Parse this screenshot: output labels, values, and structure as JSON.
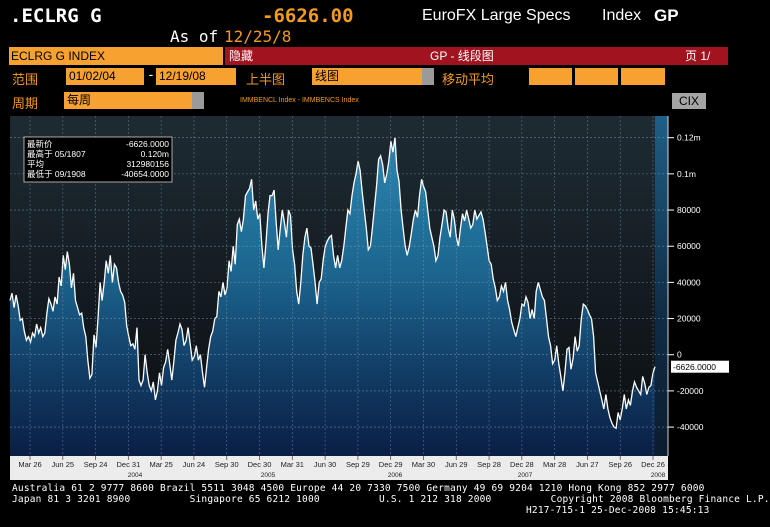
{
  "header": {
    "ticker": ".ECLRG G",
    "value": "-6626.00",
    "description": "EuroFX Large Specs",
    "index_label": "Index",
    "gp": "GP",
    "as_of_label": "As of",
    "as_of_date": "12/25/8"
  },
  "titlebar": {
    "security": "ECLRG G INDEX",
    "hide": "隐藏",
    "function": "GP - 线段图",
    "page": "页 1/"
  },
  "controls": {
    "range_label": "范围",
    "start_date": "01/02/04",
    "end_date": "12/19/08",
    "upper_chart_label": "上半图",
    "upper_chart_value": "线图",
    "moving_avg_label": "移动平均",
    "period_label": "周期",
    "period_value": "每周",
    "cix_button": "CIX"
  },
  "colors": {
    "accent": "#f29b1f",
    "title_bar": "#a1131f",
    "field": "#f7a131",
    "line": "#ffffff"
  },
  "chart_data": {
    "type": "area",
    "subtitle": "IMMBENCL Index - IMMBENCS Index",
    "stats_box": {
      "last_label": "最新价",
      "last_value": "-6626.0000",
      "high_label": "最高于 05/1807",
      "high_value": "0.120m",
      "avg_label": "平均",
      "avg_value": "312980156",
      "low_label": "最低于 09/1908",
      "low_value": "-40654.0000"
    },
    "last_value_tag": "-6626.0000",
    "ylim": [
      -56000,
      132000
    ],
    "y_ticks": [
      {
        "v": 120000,
        "label": "0.12m"
      },
      {
        "v": 100000,
        "label": "0.1m"
      },
      {
        "v": 80000,
        "label": "80000"
      },
      {
        "v": 60000,
        "label": "60000"
      },
      {
        "v": 40000,
        "label": "40000"
      },
      {
        "v": 20000,
        "label": "20000"
      },
      {
        "v": 0,
        "label": "0"
      },
      {
        "v": -20000,
        "label": "-20000"
      },
      {
        "v": -40000,
        "label": "-40000"
      }
    ],
    "x_ticks": [
      "Mar 26",
      "Jun 25",
      "Sep 24",
      "Dec 31",
      "Mar 25",
      "Jun 24",
      "Sep 30",
      "Dec 30",
      "Mar 31",
      "Jun 30",
      "Sep 29",
      "Dec 29",
      "Mar 30",
      "Jun 29",
      "Sep 28",
      "Dec 28",
      "Mar 28",
      "Jun 27",
      "Sep 26",
      "Dec 26"
    ],
    "year_labels": [
      "2004",
      "2005",
      "2006",
      "2007",
      "2008"
    ],
    "x_start": "2004-01-02",
    "x_end": "2008-12-19",
    "series": [
      {
        "values": [
          30000,
          34000,
          26000,
          33000,
          27000,
          19000,
          20000,
          13000,
          8000,
          10000,
          7000,
          12000,
          10000,
          17000,
          12000,
          15000,
          10000,
          12000,
          23000,
          31000,
          28000,
          24000,
          32000,
          28000,
          43000,
          38000,
          55000,
          47000,
          57000,
          50000,
          37000,
          45000,
          30000,
          26000,
          22000,
          23000,
          15000,
          10000,
          -3000,
          -13000,
          -11000,
          11000,
          4000,
          20000,
          40000,
          30000,
          40000,
          52000,
          45000,
          55000,
          40000,
          50000,
          48000,
          40000,
          35000,
          33000,
          29000,
          16000,
          10000,
          5000,
          6000,
          3000,
          15000,
          -14000,
          -17000,
          -14000,
          0,
          -10000,
          -17000,
          -20000,
          -15000,
          -25000,
          -20000,
          -10000,
          -17000,
          -7000,
          -4000,
          3000,
          -5000,
          -14000,
          -4000,
          8000,
          12000,
          17000,
          14000,
          5000,
          8000,
          15000,
          6000,
          -3000,
          -1000,
          5000,
          -3000,
          0,
          -10000,
          -18000,
          -7000,
          3000,
          10000,
          13000,
          20000,
          21000,
          35000,
          32000,
          40000,
          33000,
          37000,
          52000,
          46000,
          60000,
          50000,
          72000,
          75000,
          68000,
          75000,
          88000,
          90000,
          92000,
          97000,
          80000,
          85000,
          75000,
          78000,
          60000,
          48000,
          62000,
          78000,
          88000,
          88000,
          91000,
          73000,
          58000,
          70000,
          80000,
          73000,
          65000,
          80000,
          77000,
          58000,
          50000,
          35000,
          28000,
          40000,
          55000,
          65000,
          70000,
          60000,
          59000,
          50000,
          40000,
          28000,
          40000,
          42000,
          53000,
          60000,
          63000,
          65000,
          66000,
          55000,
          48000,
          55000,
          48000,
          52000,
          60000,
          70000,
          80000,
          78000,
          88000,
          95000,
          100000,
          107000,
          102000,
          90000,
          80000,
          70000,
          58000,
          60000,
          70000,
          82000,
          93000,
          108000,
          110000,
          105000,
          95000,
          100000,
          107000,
          118000,
          112000,
          120000,
          102000,
          96000,
          80000,
          70000,
          60000,
          55000,
          60000,
          67000,
          75000,
          80000,
          76000,
          88000,
          97000,
          93000,
          90000,
          80000,
          70000,
          65000,
          60000,
          52000,
          55000,
          65000,
          72000,
          80000,
          79000,
          70000,
          65000,
          80000,
          75000,
          65000,
          60000,
          70000,
          78000,
          74000,
          80000,
          75000,
          70000,
          72000,
          80000,
          75000,
          77000,
          79000,
          75000,
          68000,
          60000,
          52000,
          50000,
          42000,
          37000,
          30000,
          32000,
          38000,
          35000,
          40000,
          30000,
          25000,
          18000,
          14000,
          10000,
          15000,
          20000,
          28000,
          27000,
          32000,
          29000,
          20000,
          25000,
          20000,
          35000,
          40000,
          36000,
          32000,
          30000,
          20000,
          10000,
          5000,
          -5000,
          -3000,
          5000,
          -5000,
          -12000,
          -20000,
          -10000,
          3000,
          4000,
          -8000,
          -2000,
          10000,
          2000,
          5000,
          20000,
          28000,
          27000,
          25000,
          22000,
          20000,
          10000,
          -10000,
          -15000,
          -20000,
          -25000,
          -30000,
          -22000,
          -30000,
          -35000,
          -38000,
          -40000,
          -40654,
          -32000,
          -36000,
          -30000,
          -22000,
          -30000,
          -25000,
          -28000,
          -20000,
          -15000,
          -18000,
          -20000,
          -22000,
          -12000,
          -16000,
          -22000,
          -18000,
          -17000,
          -10000,
          -6626
        ]
      }
    ]
  },
  "footer": {
    "line1_left": "Australia 61 2 9777 8600 Brazil 5511 3048 4500 Europe 44 20 7330 7500 Germany 49 69 9204 1210 Hong Kong 852 2977 6000",
    "line2_left": "Japan 81 3 3201 8900          Singapore 65 6212 1000          U.S. 1 212 318 2000          Copyright 2008 Bloomberg Finance L.P.",
    "line3_right": "H217-715-1 25-Dec-2008 15:45:13"
  }
}
